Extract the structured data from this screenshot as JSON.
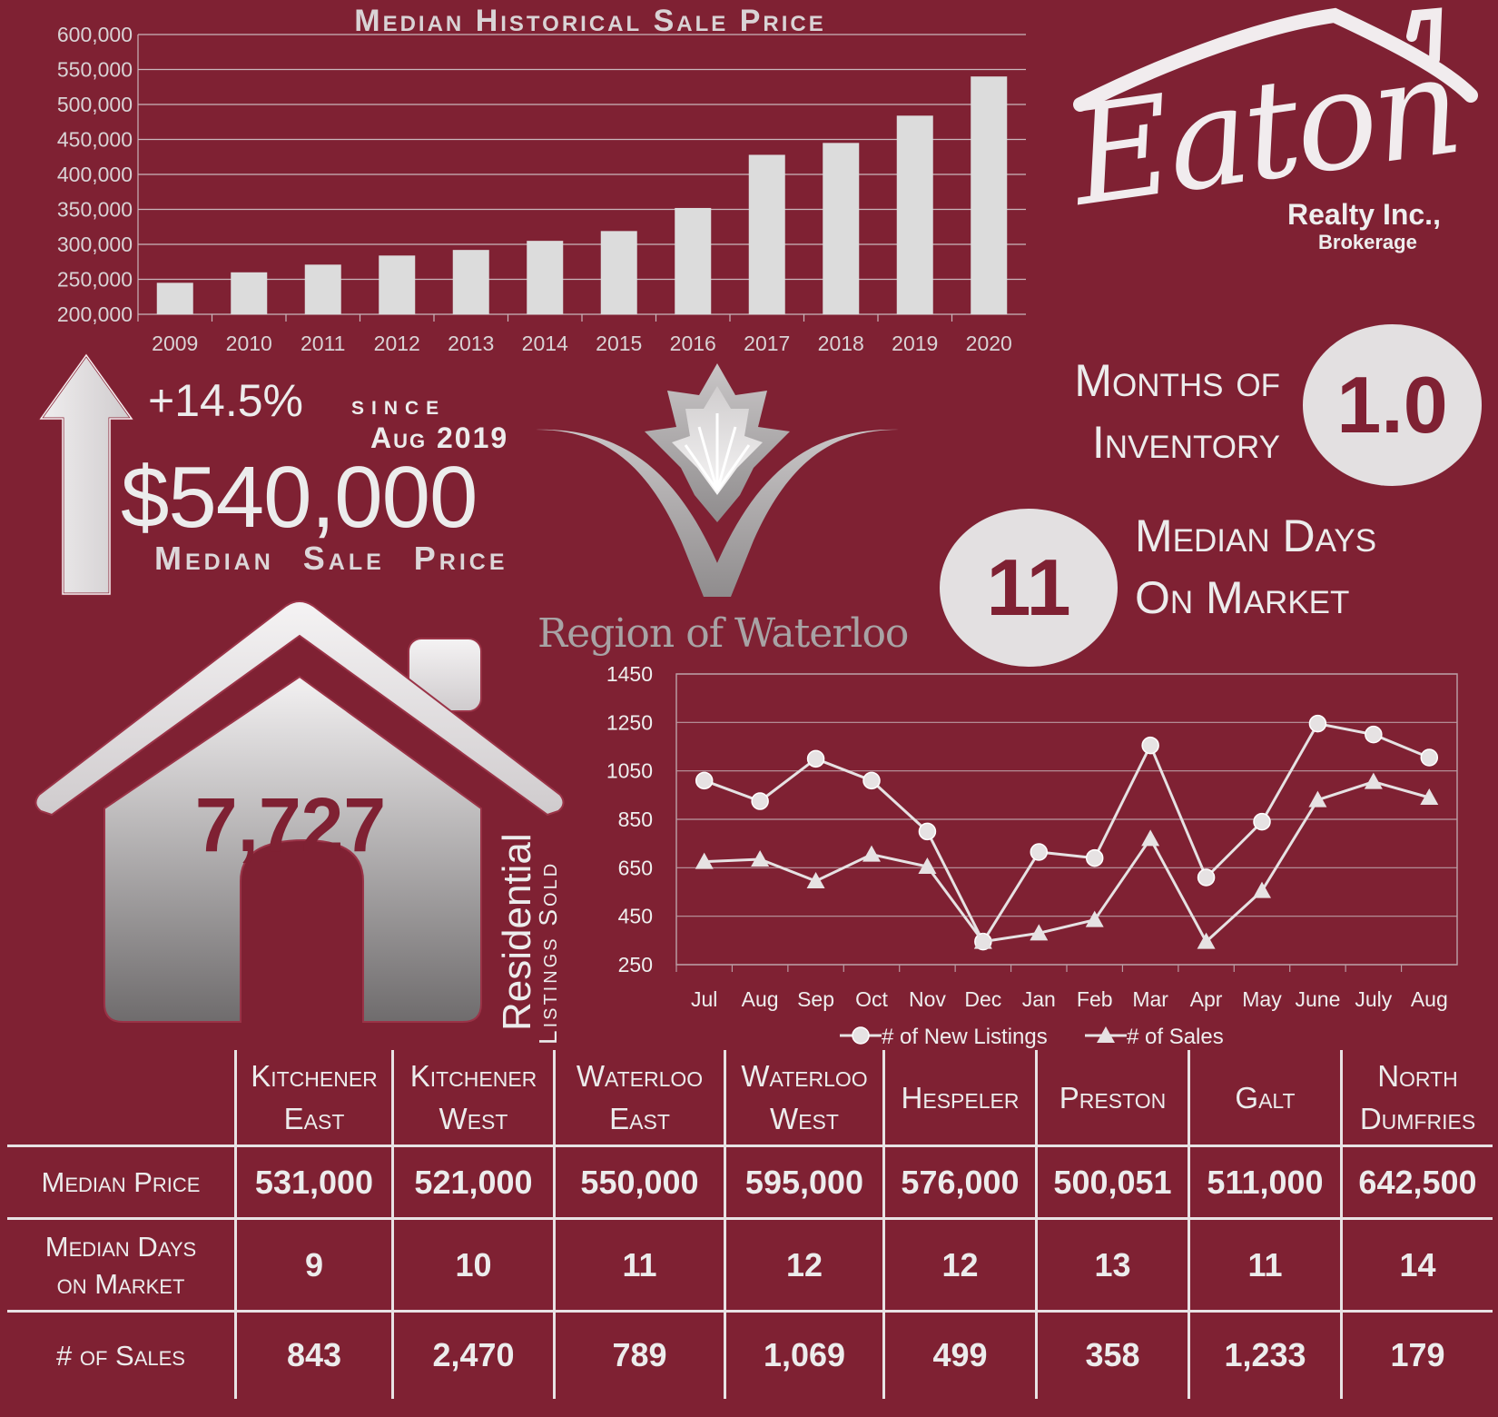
{
  "bar_chart_title": "Median Historical Sale Price",
  "logo": {
    "script": "Eaton",
    "company": "Realty Inc.,",
    "sub": "Brokerage"
  },
  "price": {
    "change": "+14.5%",
    "since_label": "since",
    "since_date": "Aug 2019",
    "median_price": "$540,000",
    "median_price_label": "Median Sale Price"
  },
  "months_of_inventory": {
    "label_line1": "Months of",
    "label_line2": "Inventory",
    "value": "1.0"
  },
  "median_days_on_market": {
    "label_line1": "Median Days",
    "label_line2": "On Market",
    "value": "11"
  },
  "region": {
    "name": "Region of Waterloo"
  },
  "listings_sold": {
    "value": "7,727",
    "label1": "Residential",
    "label2": "Listings Sold"
  },
  "chart_data": [
    {
      "type": "bar",
      "title": "Median Historical Sale Price",
      "categories": [
        "2009",
        "2010",
        "2011",
        "2012",
        "2013",
        "2014",
        "2015",
        "2016",
        "2017",
        "2018",
        "2019",
        "2020"
      ],
      "values": [
        245000,
        260000,
        271000,
        284000,
        292000,
        305000,
        319000,
        352000,
        428000,
        445000,
        484000,
        540000
      ],
      "ylim": [
        200000,
        600000
      ],
      "yticks": [
        "200,000",
        "250,000",
        "300,000",
        "350,000",
        "400,000",
        "450,000",
        "500,000",
        "550,000",
        "600,000"
      ],
      "ytick_values": [
        200000,
        250000,
        300000,
        350000,
        400000,
        450000,
        500000,
        550000,
        600000
      ],
      "grid": true
    },
    {
      "type": "line",
      "categories": [
        "Jul",
        "Aug",
        "Sep",
        "Oct",
        "Nov",
        "Dec",
        "Jan",
        "Feb",
        "Mar",
        "Apr",
        "May",
        "June",
        "July",
        "Aug"
      ],
      "series": [
        {
          "name": "# of New Listings",
          "marker": "circle",
          "values": [
            1010,
            925,
            1100,
            1010,
            800,
            345,
            715,
            690,
            1155,
            610,
            840,
            1245,
            1200,
            1105
          ]
        },
        {
          "name": "# of Sales",
          "marker": "triangle",
          "values": [
            675,
            685,
            595,
            705,
            655,
            345,
            380,
            435,
            770,
            345,
            555,
            930,
            1005,
            940
          ]
        }
      ],
      "ylim": [
        250,
        1450
      ],
      "yticks": [
        250,
        450,
        650,
        850,
        1050,
        1250,
        1450
      ],
      "legend": "bottom",
      "grid": true
    }
  ],
  "table": {
    "columns": [
      {
        "line1": "Kitchener",
        "line2": "East"
      },
      {
        "line1": "Kitchener",
        "line2": "West"
      },
      {
        "line1": "Waterloo",
        "line2": "East"
      },
      {
        "line1": "Waterloo",
        "line2": "West"
      },
      {
        "line1": "Hespeler",
        "line2": ""
      },
      {
        "line1": "Preston",
        "line2": ""
      },
      {
        "line1": "Galt",
        "line2": ""
      },
      {
        "line1": "North",
        "line2": "Dumfries"
      }
    ],
    "rows": [
      {
        "label_line1": "Median Price",
        "label_line2": "",
        "values": [
          "531,000",
          "521,000",
          "550,000",
          "595,000",
          "576,000",
          "500,051",
          "511,000",
          "642,500"
        ]
      },
      {
        "label_line1": "Median Days",
        "label_line2": "on Market",
        "values": [
          "9",
          "10",
          "11",
          "12",
          "12",
          "13",
          "11",
          "14"
        ]
      },
      {
        "label_line1": "# of Sales",
        "label_line2": "",
        "values": [
          "843",
          "2,470",
          "789",
          "1,069",
          "499",
          "358",
          "1,233",
          "179"
        ]
      }
    ]
  }
}
